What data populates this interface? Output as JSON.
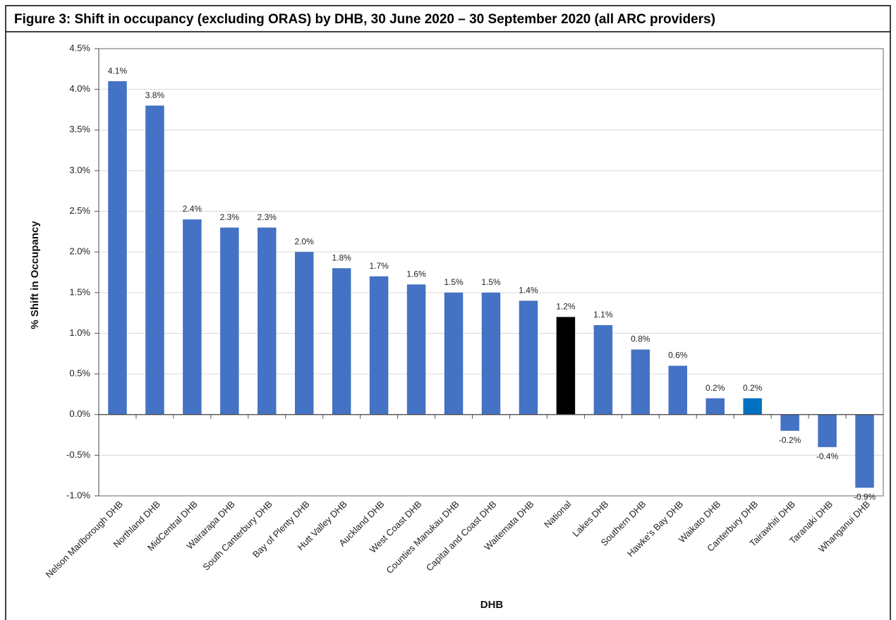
{
  "chart_data": {
    "type": "bar",
    "title": "Figure 3: Shift in occupancy (excluding ORAS) by DHB, 30 June 2020 – 30 September 2020 (all ARC providers)",
    "x_label": "DHB",
    "y_label": "% Shift in Occupancy",
    "categories": [
      "Nelson Marlborough DHB",
      "Northland DHB",
      "MidCentral DHB",
      "Wairarapa DHB",
      "South Canterbury DHB",
      "Bay of Plenty DHB",
      "Hutt Valley DHB",
      "Auckland DHB",
      "West Coast DHB",
      "Counties Manukau DHB",
      "Capital and Coast DHB",
      "Waitemata DHB",
      "National",
      "Lakes DHB",
      "Southern DHB",
      "Hawke's Bay DHB",
      "Waikato DHB",
      "Canterbury DHB",
      "Tairawhiti DHB",
      "Taranaki DHB",
      "Whanganui DHB"
    ],
    "values": [
      4.1,
      3.8,
      2.4,
      2.3,
      2.3,
      2.0,
      1.8,
      1.7,
      1.6,
      1.5,
      1.5,
      1.4,
      1.2,
      1.1,
      0.8,
      0.6,
      0.2,
      0.2,
      -0.2,
      -0.4,
      -0.9
    ],
    "value_labels": [
      "4.1%",
      "3.8%",
      "2.4%",
      "2.3%",
      "2.3%",
      "2.0%",
      "1.8%",
      "1.7%",
      "1.6%",
      "1.5%",
      "1.5%",
      "1.4%",
      "1.2%",
      "1.1%",
      "0.8%",
      "0.6%",
      "0.2%",
      "0.2%",
      "-0.2%",
      "-0.4%",
      "-0.9%"
    ],
    "colors": [
      "#4472c4",
      "#4472c4",
      "#4472c4",
      "#4472c4",
      "#4472c4",
      "#4472c4",
      "#4472c4",
      "#4472c4",
      "#4472c4",
      "#4472c4",
      "#4472c4",
      "#4472c4",
      "#000000",
      "#4472c4",
      "#4472c4",
      "#4472c4",
      "#4472c4",
      "#0070c0",
      "#4472c4",
      "#4472c4",
      "#4472c4"
    ],
    "ylim": [
      -1.0,
      4.5
    ],
    "yticks": [
      {
        "value": -1.0,
        "label": "-1.0%"
      },
      {
        "value": -0.5,
        "label": "-0.5%"
      },
      {
        "value": 0,
        "label": "0.0%"
      },
      {
        "value": 0.5,
        "label": "0.5%"
      },
      {
        "value": 1.0,
        "label": "1.0%"
      },
      {
        "value": 1.5,
        "label": "1.5%"
      },
      {
        "value": 2.0,
        "label": "2.0%"
      },
      {
        "value": 2.5,
        "label": "2.5%"
      },
      {
        "value": 3.0,
        "label": "3.0%"
      },
      {
        "value": 3.5,
        "label": "3.5%"
      },
      {
        "value": 4.0,
        "label": "4.0%"
      },
      {
        "value": 4.5,
        "label": "4.5%"
      }
    ],
    "grid": true
  }
}
